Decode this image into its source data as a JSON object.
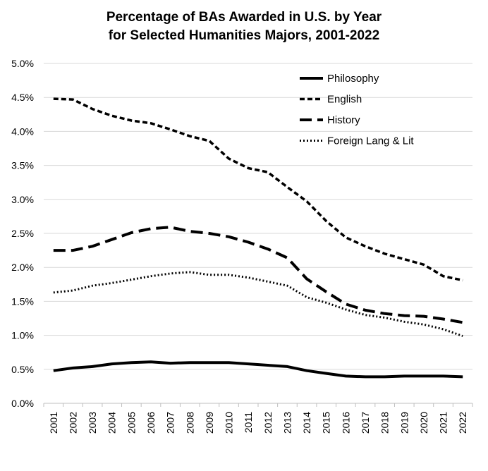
{
  "chart_data": {
    "type": "line",
    "title_lines": [
      "Percentage of BAs Awarded in U.S. by Year",
      "for Selected Humanities Majors, 2001-2022"
    ],
    "xlabel": "",
    "ylabel": "",
    "x": [
      "2001",
      "2002",
      "2003",
      "2004",
      "2005",
      "2006",
      "2007",
      "2008",
      "2009",
      "2010",
      "2011",
      "2012",
      "2013",
      "2014",
      "2015",
      "2016",
      "2017",
      "2018",
      "2019",
      "2020",
      "2021",
      "2022"
    ],
    "ylim": [
      0,
      5.0
    ],
    "yticks": [
      "0.0%",
      "0.5%",
      "1.0%",
      "1.5%",
      "2.0%",
      "2.5%",
      "3.0%",
      "3.5%",
      "4.0%",
      "4.5%",
      "5.0%"
    ],
    "grid": "horizontal",
    "legend_position": "top-right",
    "series": [
      {
        "name": "Philosophy",
        "style": "solid",
        "values": [
          0.48,
          0.52,
          0.54,
          0.58,
          0.6,
          0.61,
          0.59,
          0.6,
          0.6,
          0.6,
          0.58,
          0.56,
          0.54,
          0.48,
          0.44,
          0.4,
          0.39,
          0.39,
          0.4,
          0.4,
          0.4,
          0.39
        ]
      },
      {
        "name": "English",
        "style": "short-dash",
        "values": [
          4.48,
          4.47,
          4.33,
          4.23,
          4.16,
          4.12,
          4.03,
          3.93,
          3.86,
          3.6,
          3.46,
          3.4,
          3.18,
          2.97,
          2.68,
          2.44,
          2.31,
          2.2,
          2.12,
          2.04,
          1.87,
          1.81
        ]
      },
      {
        "name": "History",
        "style": "long-dash",
        "values": [
          2.25,
          2.25,
          2.31,
          2.41,
          2.51,
          2.57,
          2.59,
          2.53,
          2.5,
          2.45,
          2.37,
          2.27,
          2.14,
          1.83,
          1.64,
          1.46,
          1.37,
          1.32,
          1.29,
          1.28,
          1.24,
          1.19
        ]
      },
      {
        "name": "Foreign Lang & Lit",
        "style": "dotted",
        "values": [
          1.63,
          1.66,
          1.73,
          1.77,
          1.82,
          1.87,
          1.91,
          1.93,
          1.89,
          1.89,
          1.85,
          1.79,
          1.73,
          1.56,
          1.48,
          1.38,
          1.3,
          1.26,
          1.2,
          1.16,
          1.09,
          0.99
        ]
      }
    ],
    "colors": {
      "line": "#000000",
      "grid": "#d9d9d9",
      "axis": "#bfbfbf"
    }
  }
}
